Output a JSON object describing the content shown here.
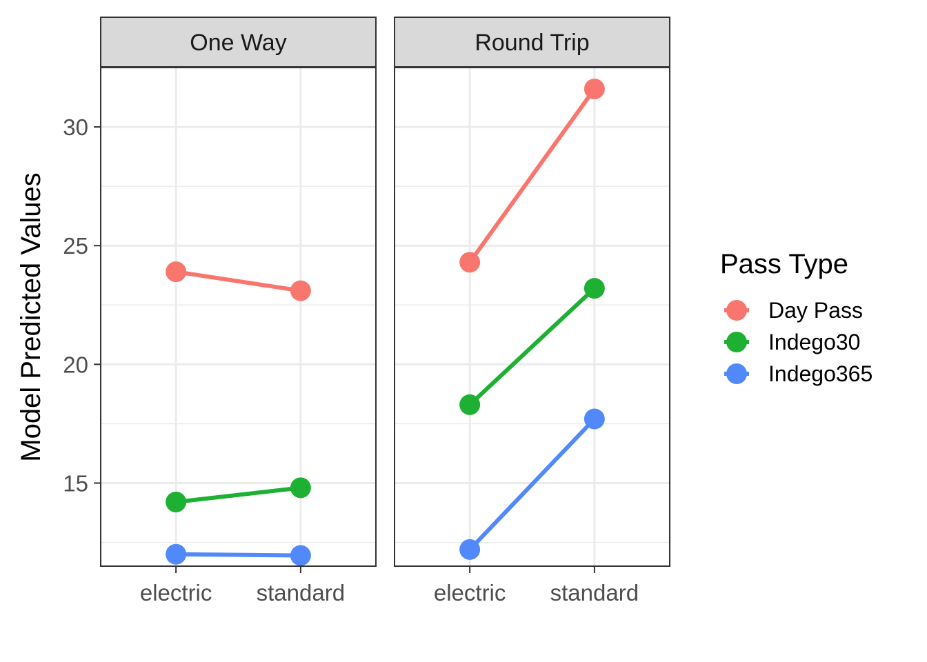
{
  "chart_data": {
    "type": "line",
    "ylabel": "Model Predicted Values",
    "xlabel": "",
    "categories": [
      "electric",
      "standard"
    ],
    "ylim": [
      11.5,
      32.5
    ],
    "yticks": [
      15,
      20,
      25,
      30
    ],
    "grid": true,
    "legend_title": "Pass Type",
    "legend_position": "right",
    "facets": [
      {
        "label": "One Way",
        "series": [
          {
            "name": "Day Pass",
            "values": [
              23.9,
              23.1
            ]
          },
          {
            "name": "Indego30",
            "values": [
              14.2,
              14.8
            ]
          },
          {
            "name": "Indego365",
            "values": [
              12.0,
              11.95
            ]
          }
        ]
      },
      {
        "label": "Round Trip",
        "series": [
          {
            "name": "Day Pass",
            "values": [
              24.3,
              31.6
            ]
          },
          {
            "name": "Indego30",
            "values": [
              18.3,
              23.2
            ]
          },
          {
            "name": "Indego365",
            "values": [
              12.2,
              17.7
            ]
          }
        ]
      }
    ],
    "colors": {
      "Day Pass": "#F8766D",
      "Indego30": "#1DB032",
      "Indego365": "#5189FA"
    }
  }
}
